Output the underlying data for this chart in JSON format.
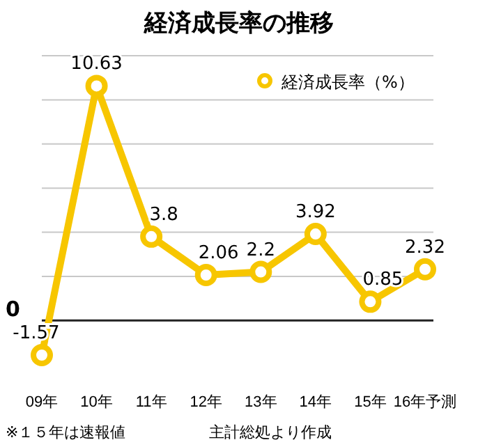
{
  "chart_data": {
    "type": "line",
    "title": "経済成長率の推移",
    "categories": [
      "09年",
      "10年",
      "11年",
      "12年",
      "13年",
      "14年",
      "15年",
      "16年予測"
    ],
    "series": [
      {
        "name": "経済成長率（%）",
        "color": "#f7c600",
        "values": [
          -1.57,
          10.63,
          3.8,
          2.06,
          2.2,
          3.92,
          0.85,
          2.32
        ]
      }
    ],
    "ref_lines": [
      {
        "axis": "y",
        "value": 0,
        "label": "0",
        "color": "#222222"
      }
    ],
    "yticks": [
      {
        "value": 0,
        "label": null
      },
      {
        "value": 2,
        "label": null
      },
      {
        "value": 4,
        "label": null
      },
      {
        "value": 6,
        "label": null
      },
      {
        "value": 8,
        "label": null
      },
      {
        "value": 10,
        "label": null
      },
      {
        "value": 12,
        "label": null
      }
    ],
    "grid": "y",
    "legend": "top right",
    "marker": "circle",
    "line_style": "solid",
    "data_labels": true,
    "annotations": [
      "※１５年は速報値",
      "主計総処より作成"
    ]
  }
}
